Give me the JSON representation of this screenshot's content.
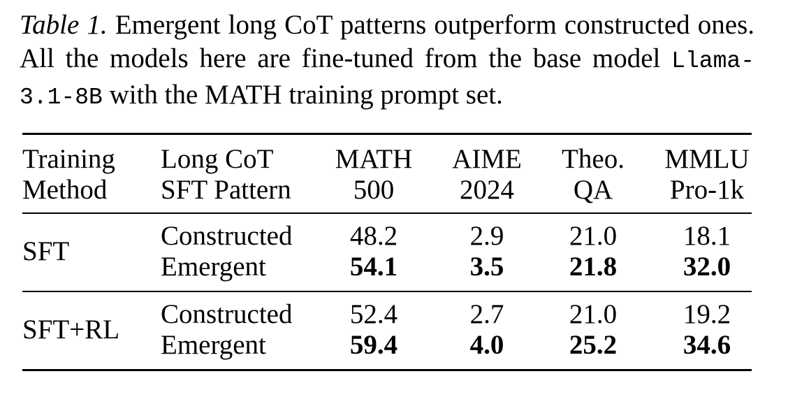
{
  "caption": {
    "label": "Table 1.",
    "text_1": " Emergent long CoT patterns outperform constructed ones.  All the models here are fine-tuned from the base model ",
    "model": "Llama-3.1-8B",
    "text_2": " with the MATH training prompt set."
  },
  "table": {
    "headers": {
      "method": [
        "Training",
        "Method"
      ],
      "pattern": [
        "Long CoT",
        "SFT Pattern"
      ],
      "math": [
        "MATH",
        "500"
      ],
      "aime": [
        "AIME",
        "2024"
      ],
      "theo": [
        "Theo.",
        "QA"
      ],
      "mmlu": [
        "MMLU",
        "Pro-1k"
      ]
    },
    "groups": [
      {
        "method": "SFT",
        "rows": [
          {
            "pattern": "Constructed",
            "math": "48.2",
            "aime": "2.9",
            "theo": "21.0",
            "mmlu": "18.1"
          },
          {
            "pattern": "Emergent",
            "math": "54.1",
            "aime": "3.5",
            "theo": "21.8",
            "mmlu": "32.0"
          }
        ]
      },
      {
        "method": "SFT+RL",
        "rows": [
          {
            "pattern": "Constructed",
            "math": "52.4",
            "aime": "2.7",
            "theo": "21.0",
            "mmlu": "19.2"
          },
          {
            "pattern": "Emergent",
            "math": "59.4",
            "aime": "4.0",
            "theo": "25.2",
            "mmlu": "34.6"
          }
        ]
      }
    ]
  }
}
